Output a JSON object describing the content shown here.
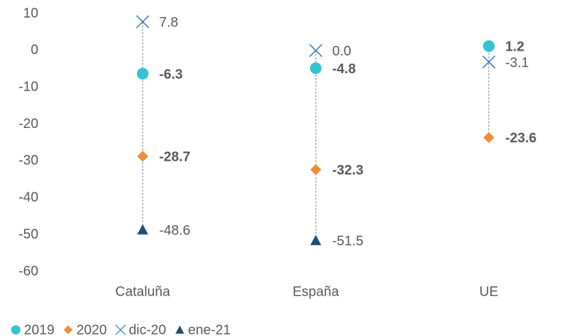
{
  "chart_data": {
    "type": "dot",
    "categories": [
      "Cataluña",
      "España",
      "UE"
    ],
    "series": [
      {
        "name": "2019",
        "color": "#33c4d4",
        "marker": "circle",
        "bold": true,
        "values": [
          -6.3,
          -4.8,
          1.2
        ]
      },
      {
        "name": "2020",
        "color": "#f28c38",
        "marker": "diamond",
        "bold": true,
        "values": [
          -28.7,
          -32.3,
          -23.6
        ]
      },
      {
        "name": "dic-20",
        "color": "#3a7dc4",
        "marker": "x",
        "bold": false,
        "values": [
          7.8,
          0.0,
          -3.1
        ],
        "value_labels": [
          "7.8",
          "0.0",
          "-3.1"
        ]
      },
      {
        "name": "ene-21",
        "color": "#1f4e79",
        "marker": "triangle",
        "bold": false,
        "values": [
          -48.6,
          -51.5,
          null
        ]
      }
    ],
    "ylim": [
      -60,
      10
    ],
    "yticks": [
      10,
      0,
      -10,
      -20,
      -30,
      -40,
      -50,
      -60
    ],
    "legend": "bottom-left"
  }
}
